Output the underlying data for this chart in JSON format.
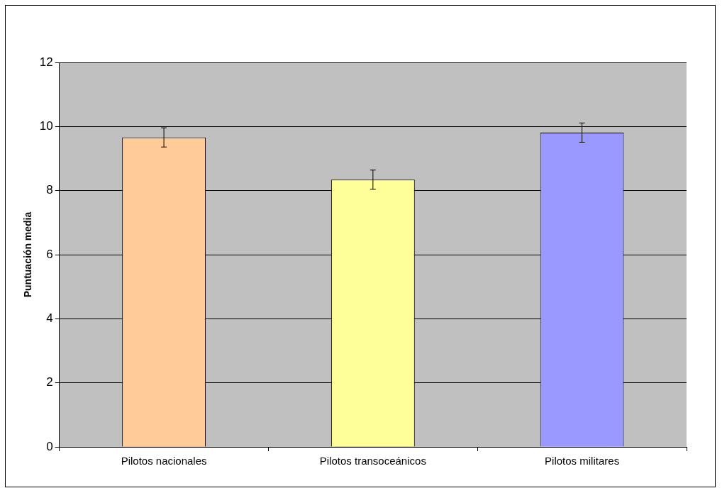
{
  "chart_data": {
    "type": "bar",
    "ylabel": "Puntuación media",
    "categories": [
      "Pilotos nacionales",
      "Pilotos transoceánicos",
      "Pilotos militares"
    ],
    "values": [
      9.66,
      8.34,
      9.81
    ],
    "colors": [
      "#ffcc99",
      "#ffff99",
      "#9999ff"
    ],
    "errors": [
      0.3,
      0.3,
      0.3
    ],
    "ylim": [
      0,
      12
    ],
    "yticks": [
      0,
      2,
      4,
      6,
      8,
      10,
      12
    ],
    "grid": "y",
    "legend": false
  }
}
